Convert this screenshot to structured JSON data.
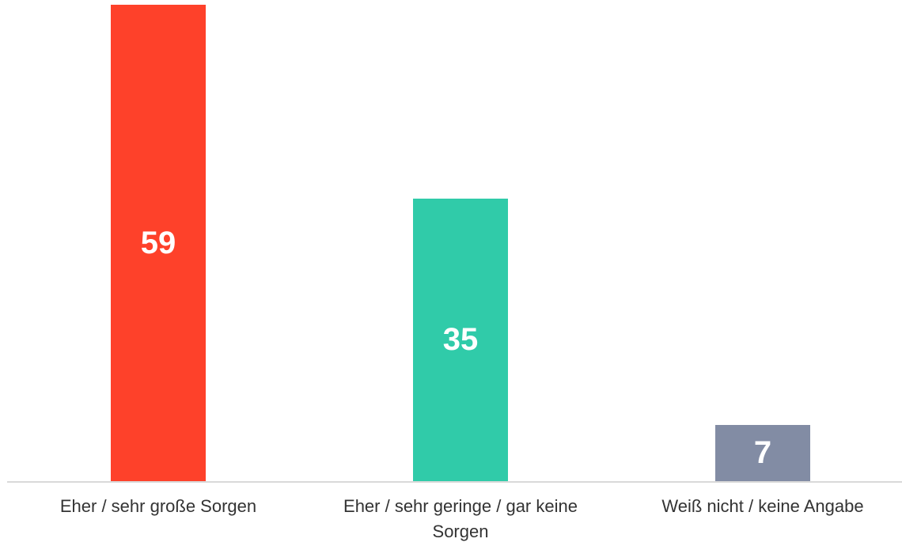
{
  "chart_data": {
    "type": "bar",
    "categories": [
      "Eher / sehr große Sorgen",
      "Eher / sehr geringe / gar keine Sorgen",
      "Weiß nicht / keine Angabe"
    ],
    "values": [
      59,
      35,
      7
    ],
    "colors": [
      "#fe412a",
      "#30cba9",
      "#828ca4"
    ]
  }
}
